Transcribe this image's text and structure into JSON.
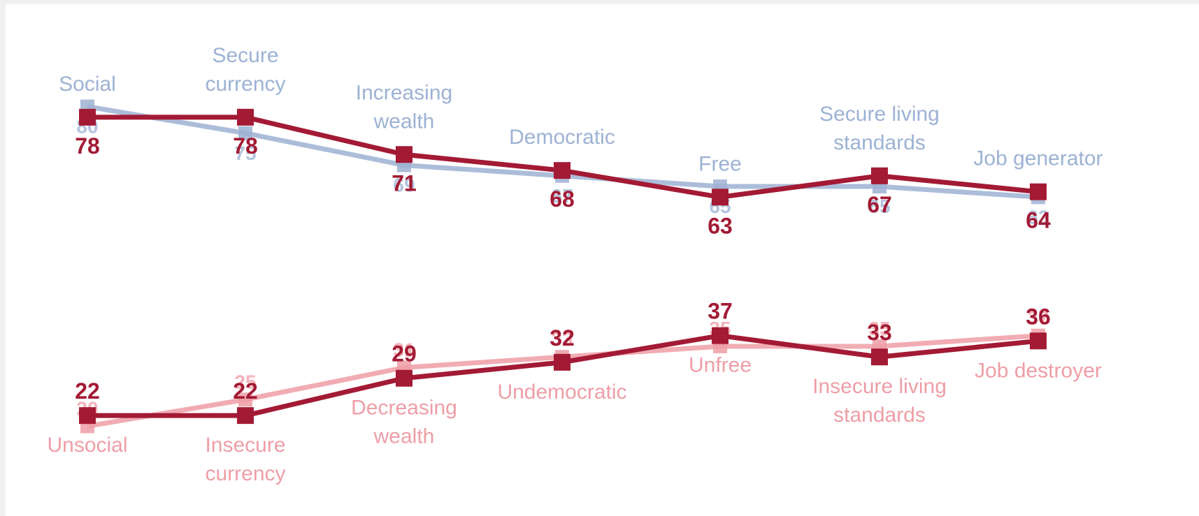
{
  "chart_data": {
    "type": "line",
    "x": [
      0,
      1,
      2,
      3,
      4,
      5,
      6
    ],
    "ylim": [
      0,
      100
    ],
    "groups": [
      {
        "categories": [
          "Social",
          "Secure\ncurrency",
          "Increasing\nwealth",
          "Democratic",
          "Free",
          "Secure living\nstandards",
          "Job generator"
        ],
        "series": [
          {
            "values": [
              80,
              75,
              69,
              67,
              65,
              65,
              63
            ],
            "color": "#9db2d4",
            "style": "ghost"
          },
          {
            "values": [
              78,
              78,
              71,
              68,
              63,
              67,
              64
            ],
            "color": "#a31a34",
            "style": "main"
          }
        ]
      },
      {
        "categories": [
          "Unsocial",
          "Insecure\ncurrency",
          "Decreasing\nwealth",
          "Undemocratic",
          "Unfree",
          "Insecure living\nstandards",
          "Job destroyer"
        ],
        "series": [
          {
            "values": [
              20,
              25,
              31,
              33,
              35,
              35,
              37
            ],
            "color": "#ee9ea6",
            "style": "ghost"
          },
          {
            "values": [
              22,
              22,
              29,
              32,
              37,
              33,
              36
            ],
            "color": "#a31a34",
            "style": "main"
          }
        ]
      }
    ],
    "grid": false,
    "legend": "none"
  }
}
